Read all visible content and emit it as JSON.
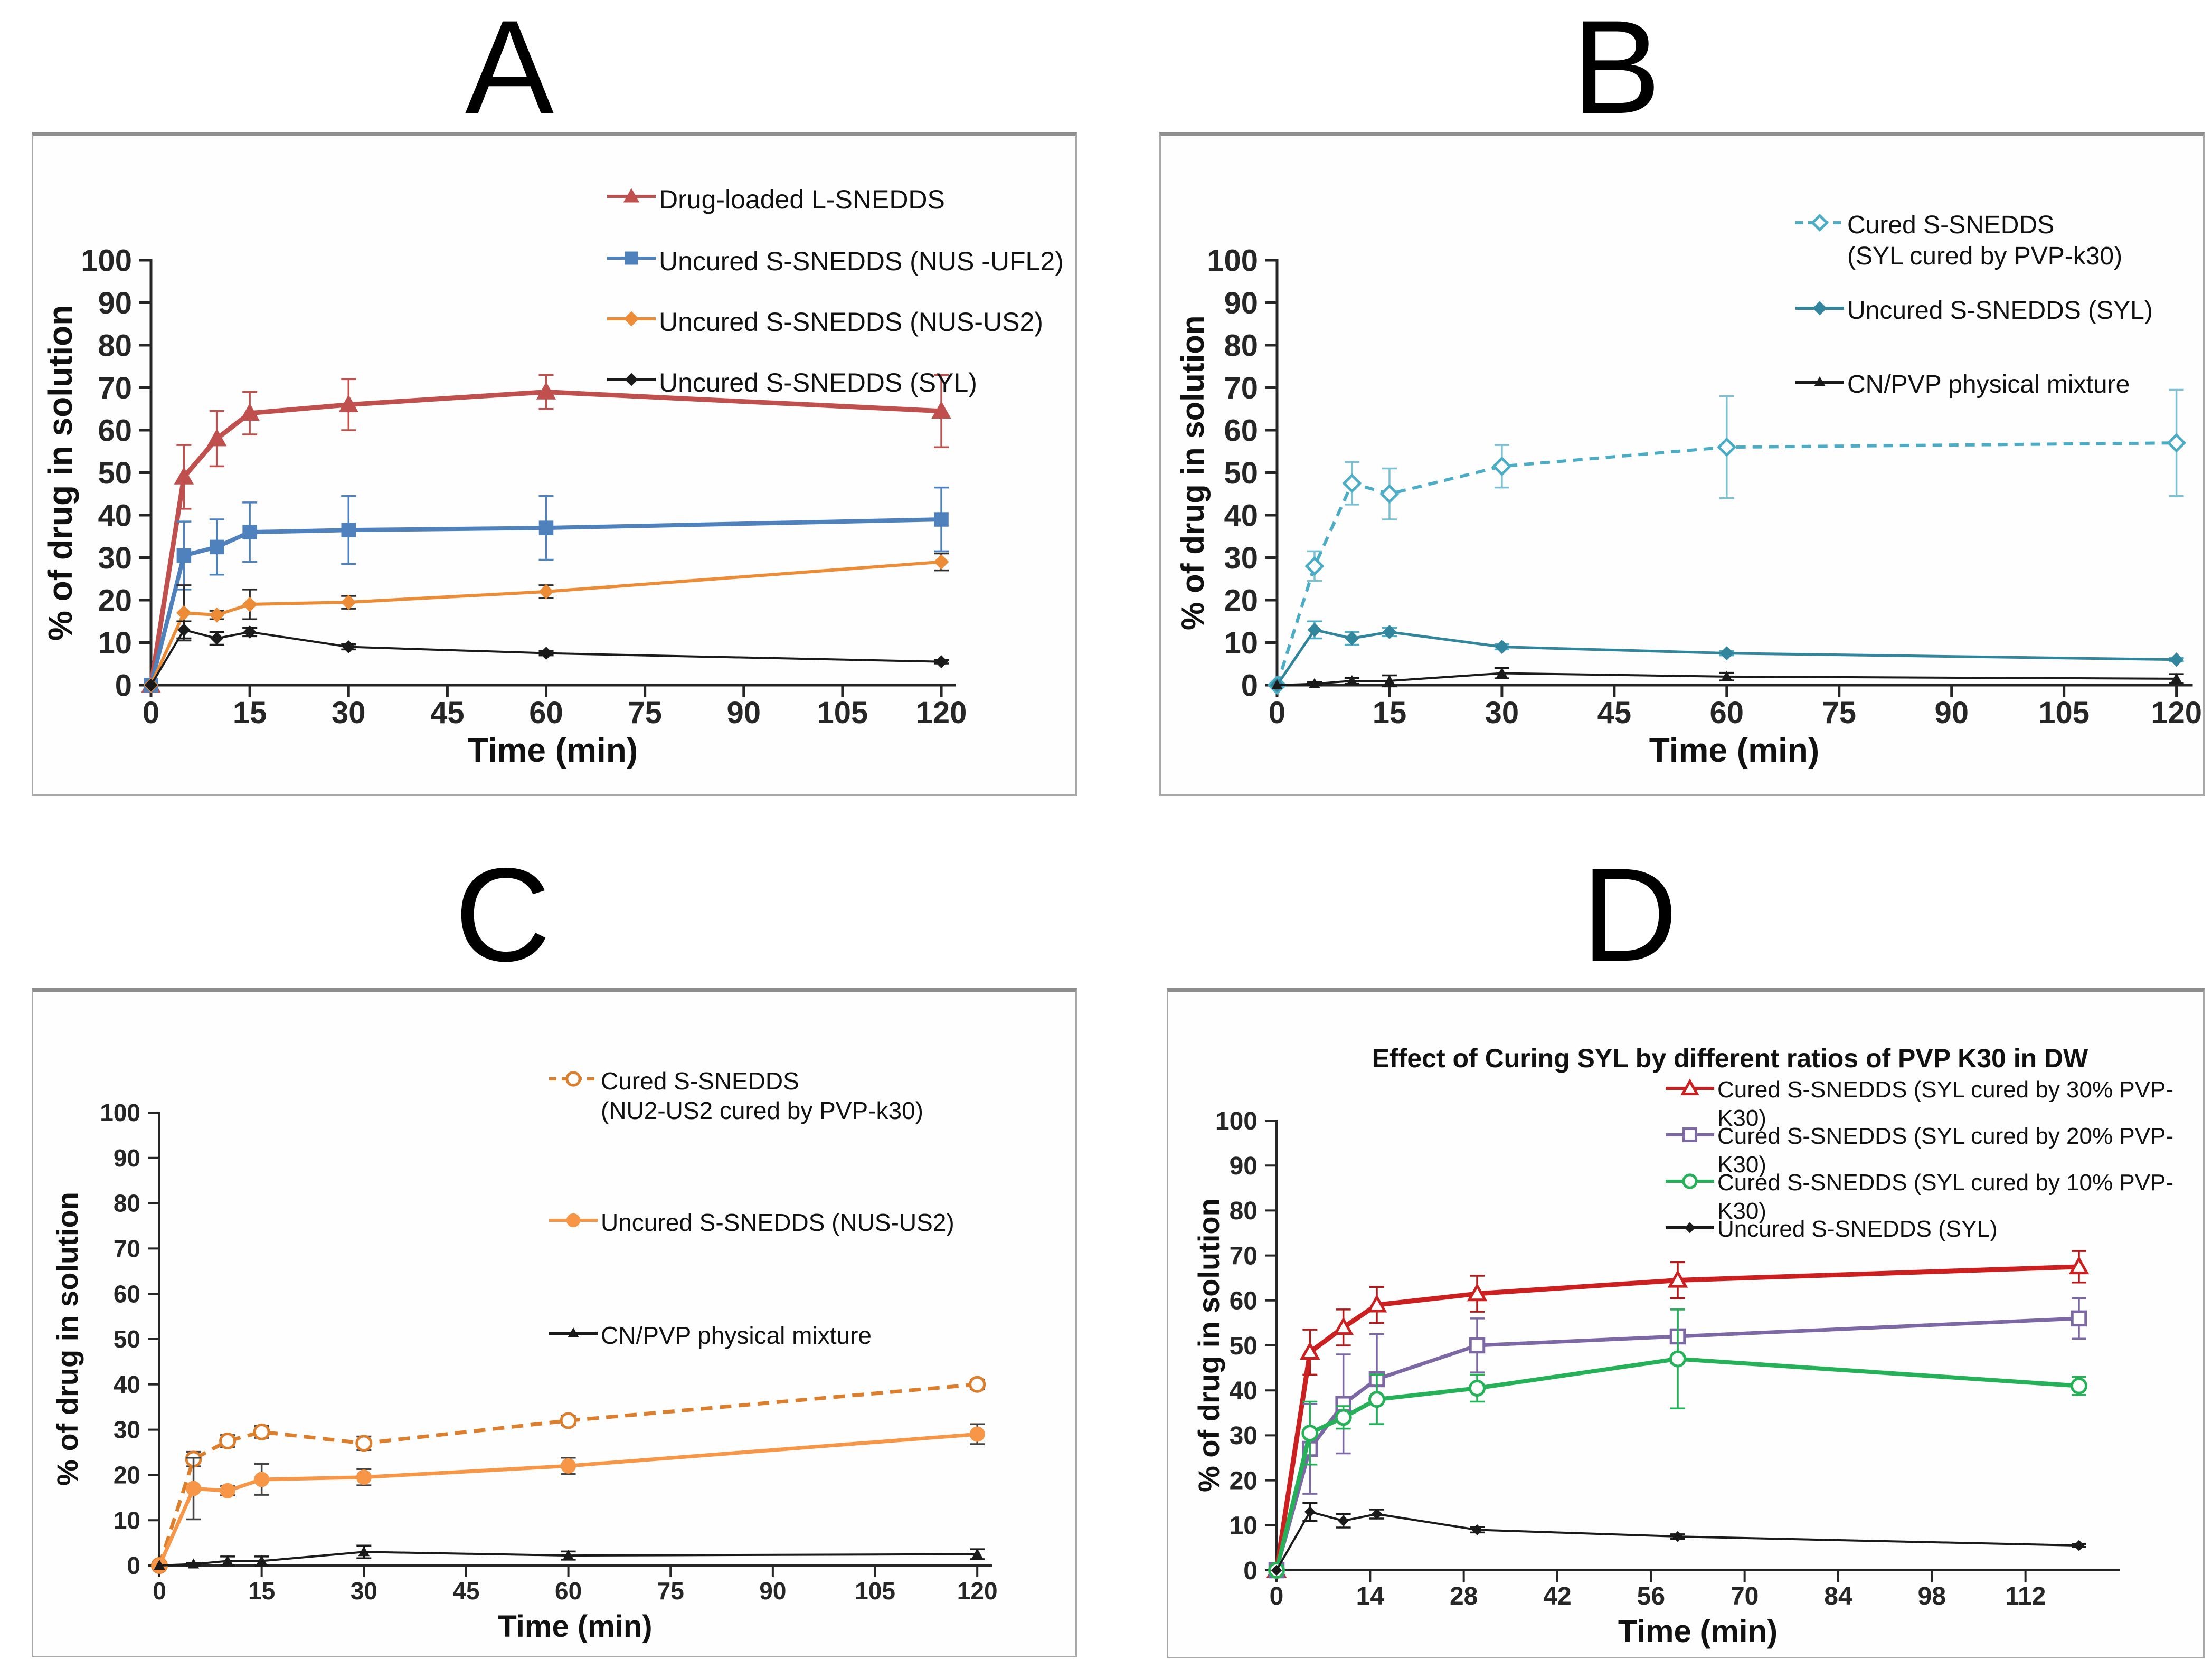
{
  "figure": {
    "description": "Four-panel in vitro dissolution profiles (% of drug in solution vs time) of SNEDDS formulations",
    "panel_letters": [
      "A",
      "B",
      "C",
      "D"
    ]
  },
  "chart_data": [
    {
      "type": "line",
      "letter": "A",
      "title": "",
      "xlabel": "Time (min)",
      "ylabel": "% of drug in solution",
      "x": [
        0,
        5,
        10,
        15,
        30,
        60,
        120
      ],
      "x_ticks": [
        0,
        15,
        30,
        45,
        60,
        75,
        90,
        105,
        120
      ],
      "y_ticks": [
        0,
        10,
        20,
        30,
        40,
        50,
        60,
        70,
        80,
        90,
        100
      ],
      "ylim": [
        0,
        100
      ],
      "grid": false,
      "legend_position": "top-right-inside",
      "series": [
        {
          "label": "Drug-loaded L-SNEDDS",
          "color": "#C0504D",
          "error_color": "#C0504D",
          "marker": "triangle",
          "marker_fill": "solid",
          "line": "solid",
          "values": [
            0,
            49,
            58,
            64,
            66,
            69,
            64.5
          ],
          "errors": [
            0,
            7.5,
            6.5,
            5,
            6,
            4,
            8.5
          ]
        },
        {
          "label": "Uncured S-SNEDDS (NUS -UFL2)",
          "color": "#4F81BD",
          "error_color": "#4F81BD",
          "marker": "square",
          "marker_fill": "solid",
          "line": "solid",
          "values": [
            0,
            30.5,
            32.5,
            36,
            36.5,
            37,
            39
          ],
          "errors": [
            0,
            8,
            6.5,
            7,
            8,
            7.5,
            7.5
          ]
        },
        {
          "label": "Uncured S-SNEDDS (NUS-US2)",
          "color": "#ED8C37",
          "error_color": "#2b2b2b",
          "marker": "diamond",
          "marker_fill": "solid",
          "line": "solid",
          "values": [
            0,
            17,
            16.5,
            19,
            19.5,
            22,
            29
          ],
          "errors": [
            0,
            6.5,
            1,
            3.5,
            1.5,
            1.5,
            2
          ]
        },
        {
          "label": "Uncured S-SNEDDS (SYL)",
          "color": "#1a1a1a",
          "error_color": "#1a1a1a",
          "marker": "diamond",
          "marker_fill": "solid",
          "line": "solid",
          "values": [
            0,
            13,
            11,
            12.5,
            9,
            7.5,
            5.5
          ],
          "errors": [
            0,
            2,
            1.5,
            1,
            0.6,
            0.5,
            0.4
          ]
        }
      ]
    },
    {
      "type": "line",
      "letter": "B",
      "title": "",
      "xlabel": "Time (min)",
      "ylabel": "% of drug in solution",
      "x": [
        0,
        5,
        10,
        15,
        30,
        60,
        120
      ],
      "x_ticks": [
        0,
        15,
        30,
        45,
        60,
        75,
        90,
        105,
        120
      ],
      "y_ticks": [
        0,
        10,
        20,
        30,
        40,
        50,
        60,
        70,
        80,
        90,
        100
      ],
      "ylim": [
        0,
        100
      ],
      "grid": false,
      "legend_position": "top-right-inside",
      "series": [
        {
          "label": "Cured S-SNEDDS\n(SYL cured by PVP-k30)",
          "color": "#4BACC6",
          "error_color": "#7CC0D2",
          "marker": "diamond",
          "marker_fill": "open",
          "line": "dashed",
          "values": [
            0,
            28,
            47.5,
            45,
            51.5,
            56,
            57
          ],
          "errors": [
            0,
            3.5,
            5,
            6,
            5,
            12,
            12.5
          ]
        },
        {
          "label": "Uncured S-SNEDDS (SYL)",
          "color": "#31859C",
          "error_color": "#4BACC6",
          "marker": "diamond",
          "marker_fill": "solid",
          "line": "solid",
          "values": [
            0,
            13,
            11,
            12.5,
            9,
            7.5,
            6
          ],
          "errors": [
            0,
            2,
            1.5,
            1,
            0.6,
            0.5,
            0.4
          ]
        },
        {
          "label": "CN/PVP physical mixture",
          "color": "#1a1a1a",
          "error_color": "#1a1a1a",
          "marker": "triangle",
          "marker_fill": "solid",
          "line": "solid",
          "values": [
            0,
            0.3,
            1,
            1,
            2.8,
            2,
            1.5
          ],
          "errors": [
            0,
            0.4,
            0.7,
            1.3,
            1.2,
            0.9,
            1.1
          ]
        }
      ]
    },
    {
      "type": "line",
      "letter": "C",
      "title": "",
      "xlabel": "Time (min)",
      "ylabel": "% of drug in solution",
      "x": [
        0,
        5,
        10,
        15,
        30,
        60,
        120
      ],
      "x_ticks": [
        0,
        15,
        30,
        45,
        60,
        75,
        90,
        105,
        120
      ],
      "y_ticks": [
        0,
        10,
        20,
        30,
        40,
        50,
        60,
        70,
        80,
        90,
        100
      ],
      "ylim": [
        0,
        100
      ],
      "grid": false,
      "legend_position": "top-right-inside",
      "series": [
        {
          "label": "Cured S-SNEDDS\n(NU2-US2 cured by PVP-k30)",
          "color": "#DD7E2C",
          "error_color": "#444444",
          "marker": "circle",
          "marker_fill": "open",
          "line": "dashed",
          "values": [
            0,
            23.5,
            27.5,
            29.5,
            27,
            32,
            40
          ],
          "errors": [
            0,
            1.6,
            1.3,
            1.3,
            1.5,
            1,
            1
          ]
        },
        {
          "label": "Uncured S-SNEDDS (NUS-US2)",
          "color": "#F79646",
          "error_color": "#444444",
          "marker": "circle",
          "marker_fill": "solid",
          "line": "solid",
          "values": [
            0,
            17,
            16.5,
            19,
            19.5,
            22,
            29
          ],
          "errors": [
            0,
            6.8,
            1,
            3.4,
            1.8,
            1.8,
            2.2
          ]
        },
        {
          "label": "CN/PVP physical mixture",
          "color": "#1a1a1a",
          "error_color": "#1a1a1a",
          "marker": "triangle",
          "marker_fill": "solid",
          "line": "solid",
          "values": [
            0,
            0.3,
            1,
            1,
            3,
            2.2,
            2.5
          ],
          "errors": [
            0,
            0.3,
            1,
            1,
            1.4,
            0.9,
            1.1
          ]
        }
      ]
    },
    {
      "type": "line",
      "letter": "D",
      "title": "Effect of Curing SYL by different ratios of PVP K30 in DW",
      "xlabel": "Time (min)",
      "ylabel": "% of drug in solution",
      "x": [
        0,
        5,
        10,
        15,
        30,
        60,
        120
      ],
      "x_ticks": [
        0,
        14,
        28,
        42,
        56,
        70,
        84,
        98,
        112
      ],
      "y_ticks": [
        0,
        10,
        20,
        30,
        40,
        50,
        60,
        70,
        80,
        90,
        100
      ],
      "ylim": [
        0,
        100
      ],
      "grid": false,
      "legend_position": "top-right-inside",
      "series": [
        {
          "label": "Cured S-SNEDDS (SYL cured by 30% PVP-K30)",
          "color": "#CC1F1F",
          "error_color": "#B21A1A",
          "marker": "triangle",
          "marker_fill": "open",
          "line": "solid",
          "values": [
            0,
            48.5,
            54,
            59,
            61.5,
            64.5,
            67.5
          ],
          "errors": [
            0,
            5,
            4,
            4,
            4,
            4,
            3.5
          ]
        },
        {
          "label": "Cured S-SNEDDS (SYL cured by 20% PVP-K30)",
          "color": "#7B68A4",
          "error_color": "#7B68A4",
          "marker": "square",
          "marker_fill": "open",
          "line": "solid",
          "values": [
            0,
            27,
            37,
            42.5,
            50,
            52,
            56
          ],
          "errors": [
            0,
            10,
            11,
            10,
            6,
            6,
            4.5
          ]
        },
        {
          "label": "Cured S-SNEDDS (SYL cured by 10% PVP-K30)",
          "color": "#25B158",
          "error_color": "#25B158",
          "marker": "circle",
          "marker_fill": "open",
          "line": "solid",
          "values": [
            0,
            30.5,
            34,
            38,
            40.5,
            47,
            41
          ],
          "errors": [
            0,
            7,
            2.5,
            5.5,
            3,
            11,
            2
          ]
        },
        {
          "label": "Uncured S-SNEDDS (SYL)",
          "color": "#1a1a1a",
          "error_color": "#1a1a1a",
          "marker": "diamond",
          "marker_fill": "solid",
          "line": "solid",
          "values": [
            0,
            13,
            11,
            12.5,
            9,
            7.5,
            5.5
          ],
          "errors": [
            0,
            2,
            1.5,
            1,
            0.6,
            0.5,
            0.3
          ]
        }
      ]
    }
  ]
}
